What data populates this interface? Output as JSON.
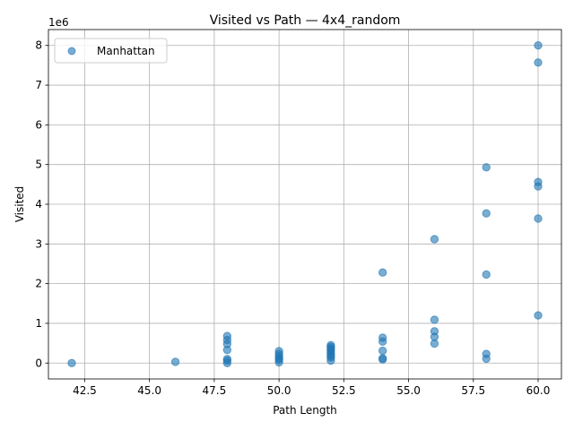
{
  "chart_data": {
    "type": "scatter",
    "title": "Visited vs Path — 4x4_random",
    "xlabel": "Path Length",
    "ylabel": "Visited",
    "y_offset_label": "1e6",
    "y_scale_factor": 1000000,
    "xlim": [
      41.1,
      60.9
    ],
    "ylim": [
      -400000,
      8400000
    ],
    "x_ticks": [
      42.5,
      45.0,
      47.5,
      50.0,
      52.5,
      55.0,
      57.5,
      60.0
    ],
    "x_tick_labels": [
      "42.5",
      "45.0",
      "47.5",
      "50.0",
      "52.5",
      "55.0",
      "57.5",
      "60.0"
    ],
    "y_ticks": [
      0,
      1000000,
      2000000,
      3000000,
      4000000,
      5000000,
      6000000,
      7000000,
      8000000
    ],
    "y_tick_labels": [
      "0",
      "1",
      "2",
      "3",
      "4",
      "5",
      "6",
      "7",
      "8"
    ],
    "grid": true,
    "legend": {
      "position": "top-left"
    },
    "series": [
      {
        "name": "Manhattan",
        "color": "#1f77b4",
        "alpha": 0.6,
        "points": [
          [
            42,
            0
          ],
          [
            46,
            30000
          ],
          [
            48,
            680000
          ],
          [
            48,
            580000
          ],
          [
            48,
            480000
          ],
          [
            48,
            330000
          ],
          [
            48,
            100000
          ],
          [
            48,
            60000
          ],
          [
            48,
            0
          ],
          [
            50,
            300000
          ],
          [
            50,
            230000
          ],
          [
            50,
            170000
          ],
          [
            50,
            120000
          ],
          [
            50,
            80000
          ],
          [
            50,
            20000
          ],
          [
            52,
            450000
          ],
          [
            52,
            410000
          ],
          [
            52,
            370000
          ],
          [
            52,
            330000
          ],
          [
            52,
            280000
          ],
          [
            52,
            230000
          ],
          [
            52,
            180000
          ],
          [
            52,
            140000
          ],
          [
            52,
            60000
          ],
          [
            54,
            2280000
          ],
          [
            54,
            640000
          ],
          [
            54,
            540000
          ],
          [
            54,
            310000
          ],
          [
            54,
            120000
          ],
          [
            54,
            90000
          ],
          [
            56,
            3120000
          ],
          [
            56,
            1090000
          ],
          [
            56,
            800000
          ],
          [
            56,
            660000
          ],
          [
            56,
            490000
          ],
          [
            58,
            4930000
          ],
          [
            58,
            3770000
          ],
          [
            58,
            2230000
          ],
          [
            58,
            230000
          ],
          [
            58,
            110000
          ],
          [
            60,
            8000000
          ],
          [
            60,
            7570000
          ],
          [
            60,
            4560000
          ],
          [
            60,
            4450000
          ],
          [
            60,
            3640000
          ],
          [
            60,
            1200000
          ]
        ]
      }
    ]
  }
}
